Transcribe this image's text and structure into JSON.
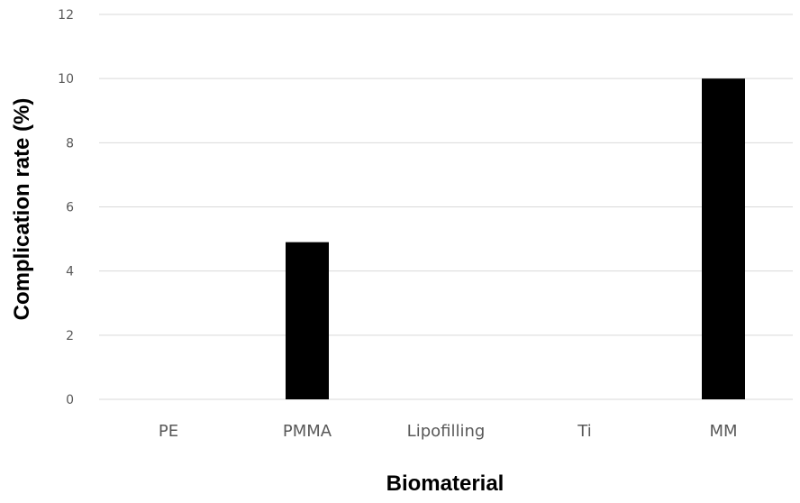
{
  "chart_data": {
    "type": "bar",
    "categories": [
      "PE",
      "PMMA",
      "Lipofilling",
      "Ti",
      "MM"
    ],
    "values": [
      0,
      4.9,
      0,
      0,
      10
    ],
    "xlabel": "Biomaterial",
    "ylabel": "Complication rate (%)",
    "ylim": [
      0,
      12
    ],
    "yticks": [
      0,
      2,
      4,
      6,
      8,
      10,
      12
    ],
    "grid": true,
    "bar_color": "#000000",
    "grid_color": "#d9d9d9"
  }
}
